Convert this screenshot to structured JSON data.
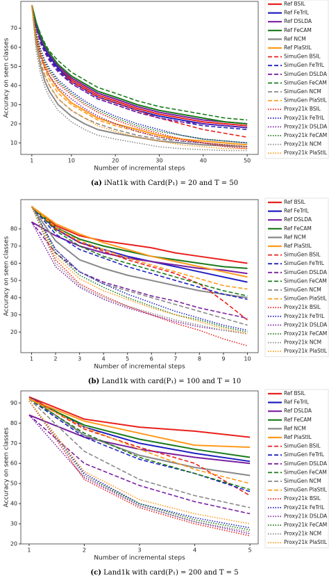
{
  "chart_data": [
    {
      "type": "line",
      "caption_label": "(a)",
      "caption": "iNat1k with Card(P₁) = 20 and T = 50",
      "xlabel": "Number of incremental steps",
      "ylabel": "Accuracy on seen classes",
      "x": [
        1,
        2,
        3,
        4,
        5,
        7,
        10,
        13,
        16,
        20,
        25,
        30,
        35,
        40,
        45,
        50
      ],
      "xlim": [
        -1.5,
        52.5
      ],
      "xticks": [
        1,
        10,
        20,
        30,
        40,
        50
      ],
      "ylim": [
        4,
        84
      ],
      "yticks": [
        10,
        20,
        30,
        40,
        50,
        60,
        70
      ],
      "series": [
        {
          "name": "Ref BSIL",
          "color": "#e8201c",
          "style": "solid",
          "values": [
            82,
            72,
            65,
            60,
            56,
            50,
            43,
            39,
            35,
            32,
            28,
            25,
            23,
            21,
            20,
            19
          ]
        },
        {
          "name": "Ref FeTrIL",
          "color": "#2020c0",
          "style": "solid",
          "values": [
            82,
            71,
            64,
            59,
            55,
            49,
            42,
            38,
            34,
            31,
            27,
            24,
            22,
            20,
            19,
            18
          ]
        },
        {
          "name": "Ref DSLDA",
          "color": "#7a1fa0",
          "style": "solid",
          "values": [
            82,
            72,
            65,
            60,
            56,
            50,
            44,
            40,
            36,
            33,
            29,
            26,
            24,
            22,
            21,
            20
          ]
        },
        {
          "name": "Ref FeCAM",
          "color": "#1a7a1a",
          "style": "solid",
          "values": [
            82,
            73,
            66,
            61,
            57,
            51,
            45,
            41,
            37,
            34,
            30,
            27,
            25,
            23,
            21,
            20
          ]
        },
        {
          "name": "Ref NCM",
          "color": "#888888",
          "style": "solid",
          "values": [
            82,
            62,
            50,
            42,
            37,
            30,
            24,
            20,
            17,
            15,
            13,
            11,
            10,
            9,
            8.5,
            8
          ]
        },
        {
          "name": "Ref PlaStIL",
          "color": "#ff9a1a",
          "style": "solid",
          "values": [
            82,
            66,
            56,
            50,
            45,
            38,
            31,
            27,
            23,
            20,
            17,
            14,
            12,
            11,
            10,
            9
          ]
        },
        {
          "name": "SimuGen BSIL",
          "color": "#e8201c",
          "style": "dashed",
          "values": [
            82,
            70,
            63,
            58,
            54,
            48,
            42,
            38,
            34,
            31,
            27,
            23,
            20,
            17,
            15,
            13
          ]
        },
        {
          "name": "SimuGen FeTrIL",
          "color": "#2020c0",
          "style": "dashed",
          "values": [
            82,
            71,
            63,
            58,
            54,
            48,
            41,
            37,
            33,
            30,
            26,
            23,
            21,
            19,
            18,
            17
          ]
        },
        {
          "name": "SimuGen DSLDA",
          "color": "#7a1fa0",
          "style": "dashed",
          "values": [
            82,
            70,
            62,
            57,
            53,
            47,
            41,
            37,
            33,
            30,
            26,
            23,
            21,
            20,
            19,
            18
          ]
        },
        {
          "name": "SimuGen FeCAM",
          "color": "#1a7a1a",
          "style": "dashed",
          "values": [
            82,
            73,
            67,
            62,
            58,
            53,
            47,
            43,
            39,
            36,
            32,
            29,
            27,
            25,
            23,
            22
          ]
        },
        {
          "name": "SimuGen NCM",
          "color": "#888888",
          "style": "dashed",
          "values": [
            82,
            63,
            52,
            45,
            40,
            33,
            27,
            23,
            20,
            17,
            14,
            12,
            11,
            10,
            9,
            8
          ]
        },
        {
          "name": "SimuGen PlaStIL",
          "color": "#ff9a1a",
          "style": "dashed",
          "values": [
            82,
            65,
            55,
            48,
            43,
            36,
            30,
            26,
            22,
            19,
            16,
            13,
            12,
            10,
            9,
            8
          ]
        },
        {
          "name": "Proxy21k BSIL",
          "color": "#e8201c",
          "style": "dotted",
          "values": [
            82,
            66,
            57,
            51,
            47,
            41,
            35,
            30,
            26,
            22,
            18,
            15,
            12,
            10,
            8,
            7
          ]
        },
        {
          "name": "Proxy21k FeTrIL",
          "color": "#2020c0",
          "style": "dotted",
          "values": [
            82,
            68,
            59,
            53,
            49,
            43,
            37,
            32,
            28,
            24,
            20,
            17,
            14,
            12,
            11,
            10
          ]
        },
        {
          "name": "Proxy21k DSLDA",
          "color": "#7a1fa0",
          "style": "dotted",
          "values": [
            82,
            64,
            55,
            49,
            45,
            39,
            33,
            28,
            24,
            20,
            16,
            13,
            11,
            10,
            9,
            8
          ]
        },
        {
          "name": "Proxy21k FeCAM",
          "color": "#1a7a1a",
          "style": "dotted",
          "values": [
            82,
            67,
            58,
            52,
            48,
            42,
            36,
            31,
            27,
            23,
            19,
            16,
            14,
            12,
            11,
            10
          ]
        },
        {
          "name": "Proxy21k NCM",
          "color": "#888888",
          "style": "dotted",
          "values": [
            82,
            58,
            46,
            39,
            34,
            27,
            21,
            17,
            14,
            12,
            10,
            8,
            7,
            6.5,
            6,
            6
          ]
        },
        {
          "name": "Proxy21k PlaStIL",
          "color": "#ff9a1a",
          "style": "dotted",
          "values": [
            82,
            62,
            51,
            45,
            40,
            33,
            27,
            23,
            19,
            16,
            13,
            11,
            9,
            8,
            7,
            7
          ]
        }
      ]
    },
    {
      "type": "line",
      "caption_label": "(b)",
      "caption": "Land1k with card(P₁) = 100 and T = 10",
      "xlabel": "Number of incremental steps",
      "ylabel": "Accuracy on seen classes",
      "x": [
        1,
        2,
        3,
        4,
        5,
        6,
        7,
        8,
        9,
        10
      ],
      "xlim": [
        0.55,
        10.45
      ],
      "xticks": [
        1,
        2,
        3,
        4,
        5,
        6,
        7,
        8,
        9,
        10
      ],
      "ylim": [
        8,
        97
      ],
      "yticks": [
        20,
        30,
        40,
        50,
        60,
        70,
        80
      ],
      "series": [
        {
          "name": "Ref BSIL",
          "color": "#e8201c",
          "style": "solid",
          "values": [
            93,
            82,
            76,
            73,
            71,
            69,
            66,
            64,
            62,
            60
          ]
        },
        {
          "name": "Ref FeTrIL",
          "color": "#2020c0",
          "style": "solid",
          "values": [
            93,
            80,
            72,
            68,
            64,
            61,
            58,
            55,
            52,
            49
          ]
        },
        {
          "name": "Ref DSLDA",
          "color": "#7a1fa0",
          "style": "solid",
          "values": [
            84,
            76,
            70,
            66,
            63,
            61,
            59,
            57,
            56,
            54
          ]
        },
        {
          "name": "Ref FeCAM",
          "color": "#1a7a1a",
          "style": "solid",
          "values": [
            93,
            81,
            74,
            70,
            67,
            64,
            62,
            60,
            58,
            57
          ]
        },
        {
          "name": "Ref NCM",
          "color": "#888888",
          "style": "solid",
          "values": [
            93,
            73,
            62,
            57,
            53,
            50,
            47,
            44,
            42,
            40
          ]
        },
        {
          "name": "Ref PlaStIL",
          "color": "#ff9a1a",
          "style": "solid",
          "values": [
            93,
            83,
            77,
            72,
            68,
            64,
            61,
            58,
            55,
            52
          ]
        },
        {
          "name": "SimuGen BSIL",
          "color": "#e8201c",
          "style": "dashed",
          "values": [
            93,
            80,
            72,
            67,
            62,
            58,
            54,
            48,
            38,
            27
          ]
        },
        {
          "name": "SimuGen FeTrIL",
          "color": "#2020c0",
          "style": "dashed",
          "values": [
            93,
            77,
            68,
            63,
            58,
            54,
            50,
            46,
            42,
            39
          ]
        },
        {
          "name": "SimuGen DSLDA",
          "color": "#7a1fa0",
          "style": "dashed",
          "values": [
            84,
            66,
            55,
            49,
            45,
            41,
            38,
            34,
            31,
            28
          ]
        },
        {
          "name": "SimuGen FeCAM",
          "color": "#1a7a1a",
          "style": "dashed",
          "values": [
            93,
            79,
            70,
            64,
            60,
            56,
            52,
            48,
            44,
            41
          ]
        },
        {
          "name": "SimuGen NCM",
          "color": "#888888",
          "style": "dashed",
          "values": [
            93,
            68,
            55,
            48,
            44,
            40,
            36,
            32,
            28,
            24
          ]
        },
        {
          "name": "SimuGen PlaStIL",
          "color": "#ff9a1a",
          "style": "dashed",
          "values": [
            93,
            81,
            73,
            68,
            63,
            59,
            55,
            51,
            47,
            45
          ]
        },
        {
          "name": "Proxy21k BSIL",
          "color": "#e8201c",
          "style": "dotted",
          "values": [
            93,
            62,
            48,
            41,
            35,
            30,
            25,
            21,
            16,
            12
          ]
        },
        {
          "name": "Proxy21k FeTrIL",
          "color": "#2020c0",
          "style": "dotted",
          "values": [
            93,
            68,
            55,
            48,
            42,
            37,
            32,
            28,
            24,
            21
          ]
        },
        {
          "name": "Proxy21k DSLDA",
          "color": "#7a1fa0",
          "style": "dotted",
          "values": [
            84,
            58,
            46,
            39,
            34,
            30,
            26,
            23,
            21,
            19
          ]
        },
        {
          "name": "Proxy21k FeCAM",
          "color": "#1a7a1a",
          "style": "dotted",
          "values": [
            93,
            66,
            53,
            46,
            40,
            35,
            30,
            27,
            23,
            20
          ]
        },
        {
          "name": "Proxy21k NCM",
          "color": "#888888",
          "style": "dotted",
          "values": [
            93,
            60,
            47,
            40,
            35,
            31,
            27,
            24,
            21,
            19
          ]
        },
        {
          "name": "Proxy21k PlaStIL",
          "color": "#ff9a1a",
          "style": "dotted",
          "values": [
            93,
            64,
            51,
            44,
            39,
            34,
            30,
            26,
            22,
            19
          ]
        }
      ]
    },
    {
      "type": "line",
      "caption_label": "(c)",
      "caption": "Land1k with card(P₁) = 200 and T = 5",
      "xlabel": "Number of incremental steps",
      "ylabel": "Accuracy on seen classes",
      "x": [
        1,
        2,
        3,
        4,
        5
      ],
      "xlim": [
        0.85,
        5.15
      ],
      "xticks": [
        1,
        2,
        3,
        4,
        5
      ],
      "ylim": [
        20,
        96
      ],
      "yticks": [
        20,
        30,
        40,
        50,
        60,
        70,
        80,
        90
      ],
      "series": [
        {
          "name": "Ref BSIL",
          "color": "#e8201c",
          "style": "solid",
          "values": [
            93,
            82,
            78,
            76,
            73
          ]
        },
        {
          "name": "Ref FeTrIL",
          "color": "#2020c0",
          "style": "solid",
          "values": [
            93,
            78,
            70,
            65,
            61
          ]
        },
        {
          "name": "Ref DSLDA",
          "color": "#7a1fa0",
          "style": "solid",
          "values": [
            84,
            73,
            67,
            63,
            60
          ]
        },
        {
          "name": "Ref FeCAM",
          "color": "#1a7a1a",
          "style": "solid",
          "values": [
            92,
            79,
            72,
            67,
            63
          ]
        },
        {
          "name": "Ref NCM",
          "color": "#888888",
          "style": "solid",
          "values": [
            93,
            74,
            64,
            58,
            54
          ]
        },
        {
          "name": "Ref PlaStIL",
          "color": "#ff9a1a",
          "style": "solid",
          "values": [
            92,
            81,
            75,
            69,
            68
          ]
        },
        {
          "name": "SimuGen BSIL",
          "color": "#e8201c",
          "style": "dashed",
          "values": [
            93,
            77,
            68,
            60,
            44
          ]
        },
        {
          "name": "SimuGen FeTrIL",
          "color": "#2020c0",
          "style": "dashed",
          "values": [
            92,
            73,
            62,
            55,
            46
          ]
        },
        {
          "name": "SimuGen DSLDA",
          "color": "#7a1fa0",
          "style": "dashed",
          "values": [
            84,
            60,
            49,
            41,
            35
          ]
        },
        {
          "name": "SimuGen FeCAM",
          "color": "#1a7a1a",
          "style": "dashed",
          "values": [
            92,
            75,
            63,
            55,
            47
          ]
        },
        {
          "name": "SimuGen NCM",
          "color": "#888888",
          "style": "dashed",
          "values": [
            92,
            66,
            52,
            44,
            38
          ]
        },
        {
          "name": "SimuGen PlaStIL",
          "color": "#ff9a1a",
          "style": "dashed",
          "values": [
            92,
            78,
            67,
            57,
            50
          ]
        },
        {
          "name": "Proxy21k BSIL",
          "color": "#e8201c",
          "style": "dotted",
          "values": [
            91,
            52,
            38,
            30,
            24
          ]
        },
        {
          "name": "Proxy21k FeTrIL",
          "color": "#2020c0",
          "style": "dotted",
          "values": [
            91,
            55,
            40,
            33,
            28
          ]
        },
        {
          "name": "Proxy21k DSLDA",
          "color": "#7a1fa0",
          "style": "dotted",
          "values": [
            84,
            53,
            39,
            31,
            25
          ]
        },
        {
          "name": "Proxy21k FeCAM",
          "color": "#1a7a1a",
          "style": "dotted",
          "values": [
            91,
            54,
            40,
            32,
            27
          ]
        },
        {
          "name": "Proxy21k NCM",
          "color": "#888888",
          "style": "dotted",
          "values": [
            91,
            54,
            39,
            31,
            26
          ]
        },
        {
          "name": "Proxy21k PlaStIL",
          "color": "#ff9a1a",
          "style": "dotted",
          "values": [
            91,
            56,
            42,
            35,
            30
          ]
        }
      ]
    }
  ]
}
